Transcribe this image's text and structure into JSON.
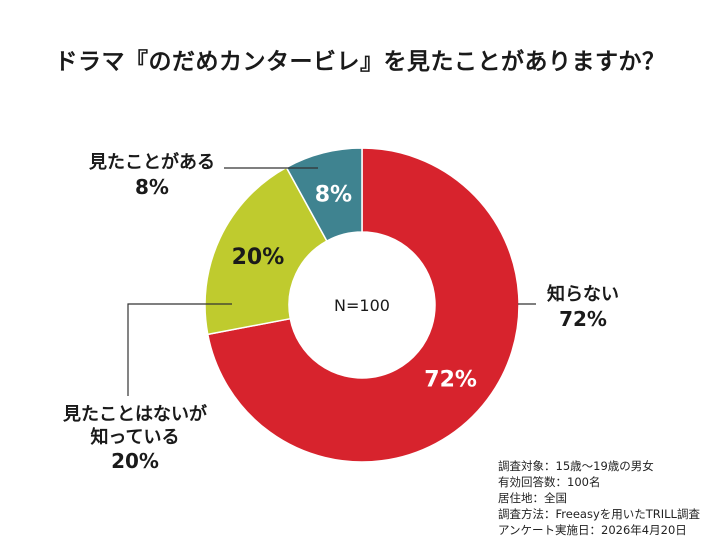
{
  "chart_data": {
    "type": "pie",
    "title": "ドラマ『のだめカンタービレ』を見たことがありますか？",
    "center_label": "N=100",
    "slices": [
      {
        "label": "知らない",
        "value": 72,
        "display": "72%",
        "color": "#d7232d"
      },
      {
        "label": "見たことはないが知っている",
        "label_lines": [
          "見たことはないが",
          "知っている"
        ],
        "value": 20,
        "display": "20%",
        "color": "#bfcb2e"
      },
      {
        "label": "見たことがある",
        "value": 8,
        "display": "8%",
        "color": "#3f8390"
      }
    ]
  },
  "notes": [
    "調査対象：15歳〜19歳の男女",
    "有効回答数：100名",
    "居住地：全国",
    "調査方法：Freeasyを用いたTRILL調査",
    "アンケート実施日：2026年4月20日"
  ]
}
